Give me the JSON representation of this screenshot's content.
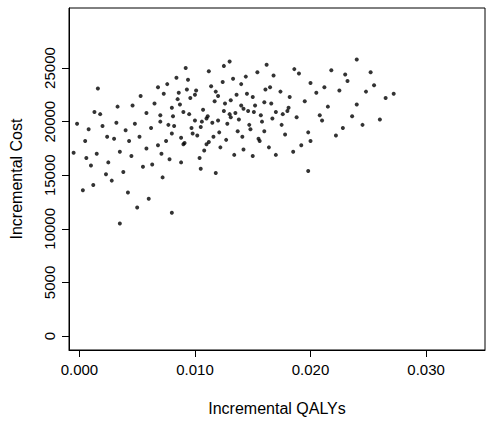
{
  "chart_data": {
    "type": "scatter",
    "x_label": "Incremental QALYs",
    "y_label": "Incremental Cost",
    "xlim": [
      -0.0009,
      0.0351
    ],
    "ylim": [
      -1300,
      30600
    ],
    "xticks": [
      {
        "value": 0,
        "label": "0.000"
      },
      {
        "value": 0.01,
        "label": "0.010"
      },
      {
        "value": 0.02,
        "label": "0.020"
      },
      {
        "value": 0.03,
        "label": "0.030"
      }
    ],
    "yticks": [
      0,
      5000,
      10000,
      15000,
      20000,
      25000
    ],
    "grid": false,
    "color": "#000000",
    "marker": "circle",
    "x": [
      0.012,
      0.0105,
      0.0135,
      0.0098,
      0.0142,
      0.011,
      0.0128,
      0.0088,
      0.0152,
      0.0115,
      0.0075,
      0.016,
      0.0082,
      0.0138,
      0.0095,
      0.0125,
      0.0068,
      0.017,
      0.0102,
      0.0148,
      0.0058,
      0.0182,
      0.009,
      0.0131,
      0.0112,
      0.0145,
      0.0062,
      0.0175,
      0.0118,
      0.008,
      0.0045,
      0.0195,
      0.007,
      0.0155,
      0.01,
      0.0165,
      0.0052,
      0.0188,
      0.0108,
      0.014,
      0.0035,
      0.0205,
      0.0078,
      0.0122,
      0.0093,
      0.0158,
      0.004,
      0.02,
      0.0085,
      0.0133,
      0.0025,
      0.0215,
      0.0065,
      0.0168,
      0.0048,
      0.0178,
      0.003,
      0.0225,
      0.0055,
      0.019,
      0.0015,
      0.0232,
      0.0038,
      0.021,
      0.002,
      0.024,
      0.001,
      0.0218,
      0.0028,
      0.0248,
      0.0005,
      0.0255,
      0.0012,
      0.026,
      -0.0005,
      0.0265,
      0.0003,
      0.0272,
      0.0018,
      0.0228,
      0.0035,
      0.008,
      0.005,
      0.0042,
      0.006,
      0.013,
      0.024,
      0.0125,
      0.0072,
      0.0105,
      0.015,
      0.0092,
      0.0185,
      0.0112,
      0.0162,
      0.0068,
      0.0198,
      0.0088,
      0.0142,
      0.0118,
      0.0127,
      0.0137,
      0.0147,
      0.0107,
      0.0097,
      0.0117,
      0.0157,
      0.0087,
      0.0077,
      0.0167,
      0.013,
      0.01,
      0.014,
      0.011,
      0.012,
      0.009,
      0.015,
      0.008,
      0.016,
      0.007,
      0.0058,
      0.0208,
      0.0032,
      0.0222,
      0.0046,
      0.0192,
      0.0008,
      0.0236,
      0.0024,
      0.0181,
      0.0124,
      0.0134,
      0.0114,
      0.0144,
      0.0104,
      0.0154,
      0.0094,
      0.0164,
      0.0084,
      0.0174,
      0.0063,
      0.0073,
      0.0053,
      0.0043,
      0.0033,
      0.0023,
      0.0013,
      -0.0002,
      0.0006,
      0.0016,
      0.017,
      0.018,
      0.02,
      0.0212,
      0.023,
      0.0245,
      0.0252,
      0.0198,
      0.0186,
      0.0176,
      0.0121,
      0.0111,
      0.0131,
      0.0101,
      0.0141,
      0.0091,
      0.0151,
      0.0081,
      0.0161,
      0.0071,
      0.0126,
      0.0116,
      0.0136,
      0.0106,
      0.0146,
      0.0096,
      0.0156,
      0.0086,
      0.0166,
      0.0076
    ],
    "values": [
      20100,
      19500,
      20800,
      18900,
      21200,
      20300,
      19800,
      18500,
      21500,
      19900,
      18200,
      21800,
      19600,
      20200,
      20700,
      21000,
      17800,
      20900,
      18700,
      19300,
      17500,
      22300,
      17900,
      22000,
      18100,
      22600,
      19400,
      19700,
      22800,
      21300,
      16800,
      21900,
      20600,
      18400,
      22500,
      23200,
      18600,
      20400,
      17300,
      23500,
      17200,
      22700,
      16500,
      17600,
      23000,
      20000,
      19200,
      23600,
      22100,
      24000,
      16200,
      21400,
      21700,
      24300,
      19800,
      18800,
      18400,
      22900,
      15800,
      24500,
      17000,
      23800,
      15300,
      20100,
      19600,
      21600,
      15900,
      24800,
      14500,
      22800,
      18200,
      23400,
      14100,
      20200,
      17100,
      22200,
      13600,
      22600,
      20700,
      19400,
      10500,
      11500,
      12000,
      13400,
      12800,
      25600,
      25800,
      25200,
      14800,
      15600,
      16800,
      25000,
      17200,
      24700,
      25300,
      23200,
      19000,
      16200,
      17400,
      15200,
      18300,
      19100,
      19700,
      21100,
      19400,
      21900,
      20600,
      21600,
      19700,
      20300,
      20700,
      20100,
      21500,
      17900,
      22400,
      20900,
      22300,
      18900,
      19100,
      20000,
      20800,
      20600,
      19900,
      18700,
      21500,
      17800,
      19300,
      20500,
      18600,
      21300,
      23700,
      16900,
      23300,
      24200,
      16600,
      24600,
      23900,
      17600,
      24100,
      22800,
      16000,
      22600,
      22400,
      18200,
      21400,
      15100,
      20900,
      19800,
      16600,
      23100,
      16900,
      21000,
      18200,
      23200,
      24400,
      19700,
      24600,
      15400,
      24900,
      20700,
      19000,
      20500,
      20400,
      22900,
      18600,
      18000,
      20900,
      20500,
      23000,
      17000,
      21700,
      18600,
      22500,
      20000,
      21000,
      22200,
      18200,
      22700,
      21700,
      23500
    ]
  }
}
